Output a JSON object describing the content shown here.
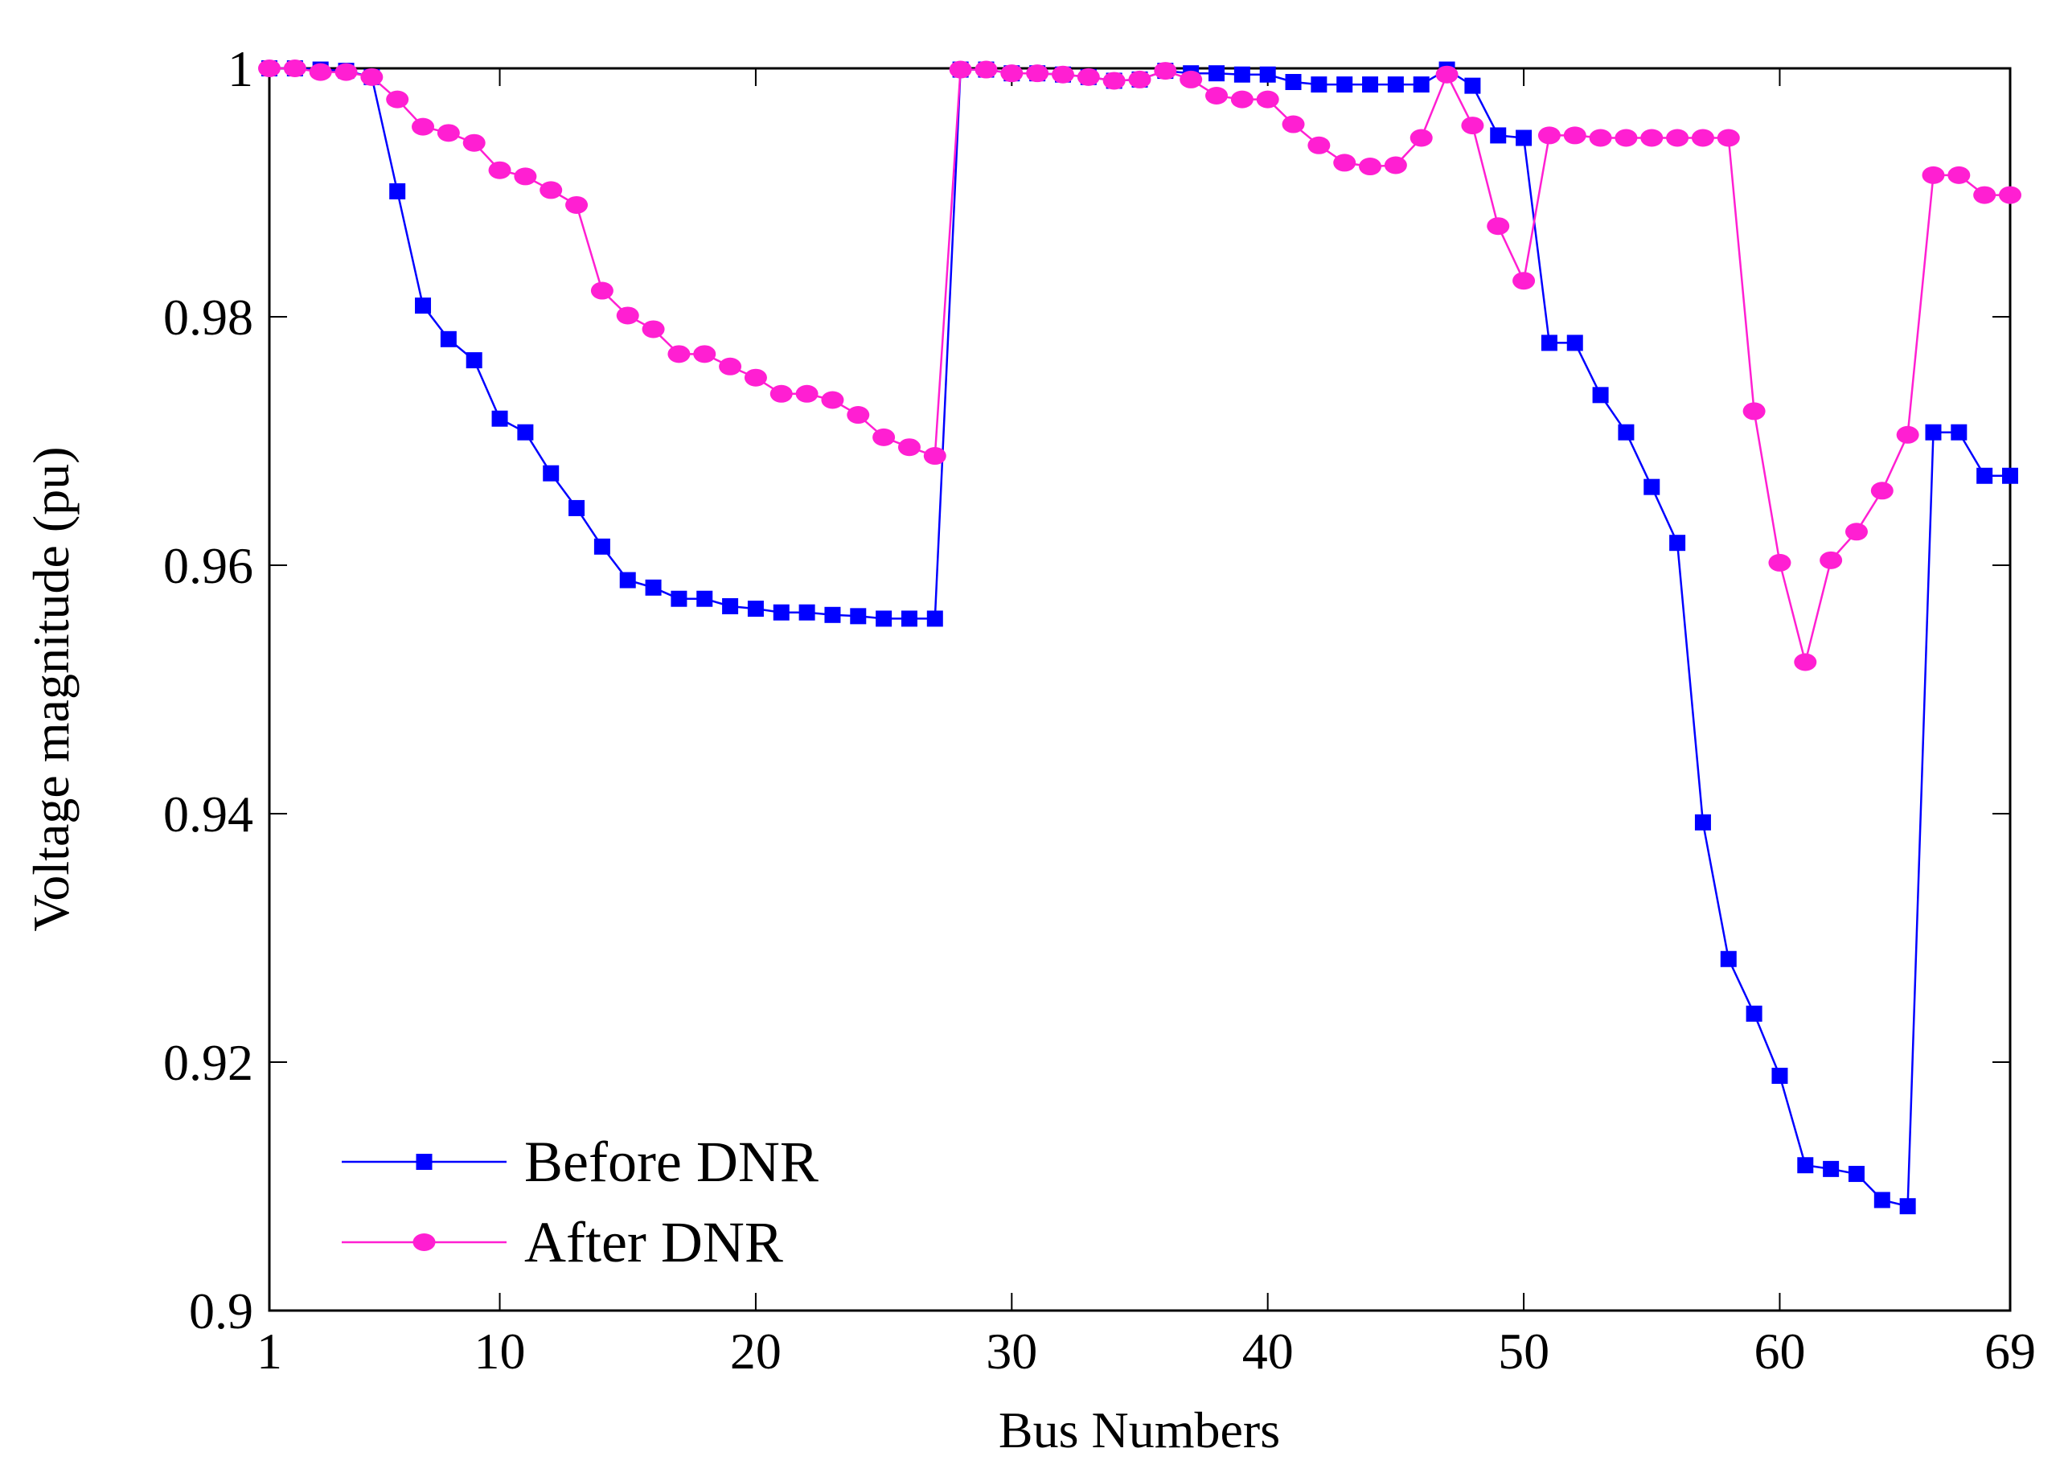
{
  "chart_data": {
    "type": "line",
    "title": "",
    "xlabel": "Bus Numbers",
    "ylabel": "Voltage magnitude (pu)",
    "xlim": [
      1,
      69
    ],
    "ylim": [
      0.9,
      1.0
    ],
    "xticks": [
      1,
      10,
      20,
      30,
      40,
      50,
      60,
      69
    ],
    "xtick_labels": [
      "1",
      "10",
      "20",
      "30",
      "40",
      "50",
      "60",
      "69"
    ],
    "yticks": [
      0.9,
      0.92,
      0.94,
      0.96,
      0.98,
      1.0
    ],
    "ytick_labels": [
      "0.9",
      "0.92",
      "0.94",
      "0.96",
      "0.98",
      "1"
    ],
    "grid": false,
    "legend_position": "bottom-left",
    "x": [
      1,
      2,
      3,
      4,
      5,
      6,
      7,
      8,
      9,
      10,
      11,
      12,
      13,
      14,
      15,
      16,
      17,
      18,
      19,
      20,
      21,
      22,
      23,
      24,
      25,
      26,
      27,
      28,
      29,
      30,
      31,
      32,
      33,
      34,
      35,
      36,
      37,
      38,
      39,
      40,
      41,
      42,
      43,
      44,
      45,
      46,
      47,
      48,
      49,
      50,
      51,
      52,
      53,
      54,
      55,
      56,
      57,
      58,
      59,
      60,
      61,
      62,
      63,
      64,
      65,
      66,
      67,
      68,
      69
    ],
    "series": [
      {
        "name": "Before DNR",
        "color": "#0000ff",
        "marker": "square",
        "values": [
          1.0,
          1.0,
          0.9999,
          0.9998,
          0.9993,
          0.9901,
          0.9809,
          0.9782,
          0.9765,
          0.9718,
          0.9707,
          0.9674,
          0.9646,
          0.9615,
          0.9588,
          0.9582,
          0.9573,
          0.9573,
          0.9567,
          0.9565,
          0.9562,
          0.9562,
          0.956,
          0.9559,
          0.9557,
          0.9557,
          0.9557,
          0.9999,
          0.9999,
          0.9996,
          0.9996,
          0.9995,
          0.9993,
          0.999,
          0.9991,
          0.9998,
          0.9996,
          0.9996,
          0.9995,
          0.9995,
          0.9989,
          0.9987,
          0.9987,
          0.9987,
          0.9987,
          0.9987,
          0.9999,
          0.9986,
          0.9946,
          0.9944,
          0.9779,
          0.9779,
          0.9737,
          0.9707,
          0.9663,
          0.9618,
          0.9393,
          0.9283,
          0.9239,
          0.9189,
          0.9117,
          0.9114,
          0.911,
          0.9089,
          0.9084,
          0.9707,
          0.9707,
          0.9672,
          0.9672
        ]
      },
      {
        "name": "After DNR",
        "color": "#ff1fd2",
        "marker": "circle",
        "values": [
          1.0,
          1.0,
          0.9997,
          0.9997,
          0.9993,
          0.9975,
          0.9953,
          0.9948,
          0.994,
          0.9918,
          0.9913,
          0.9902,
          0.989,
          0.9821,
          0.9801,
          0.979,
          0.977,
          0.977,
          0.976,
          0.9751,
          0.9738,
          0.9738,
          0.9733,
          0.9721,
          0.9703,
          0.9695,
          0.9688,
          0.9999,
          0.9999,
          0.9996,
          0.9996,
          0.9995,
          0.9993,
          0.999,
          0.9991,
          0.9998,
          0.9991,
          0.9978,
          0.9975,
          0.9975,
          0.9955,
          0.9938,
          0.9924,
          0.9921,
          0.9922,
          0.9944,
          0.9995,
          0.9954,
          0.9873,
          0.9829,
          0.9946,
          0.9946,
          0.9944,
          0.9944,
          0.9944,
          0.9944,
          0.9944,
          0.9944,
          0.9724,
          0.9602,
          0.9522,
          0.9604,
          0.9627,
          0.966,
          0.9705,
          0.9914,
          0.9914,
          0.9898,
          0.9898
        ]
      }
    ]
  }
}
